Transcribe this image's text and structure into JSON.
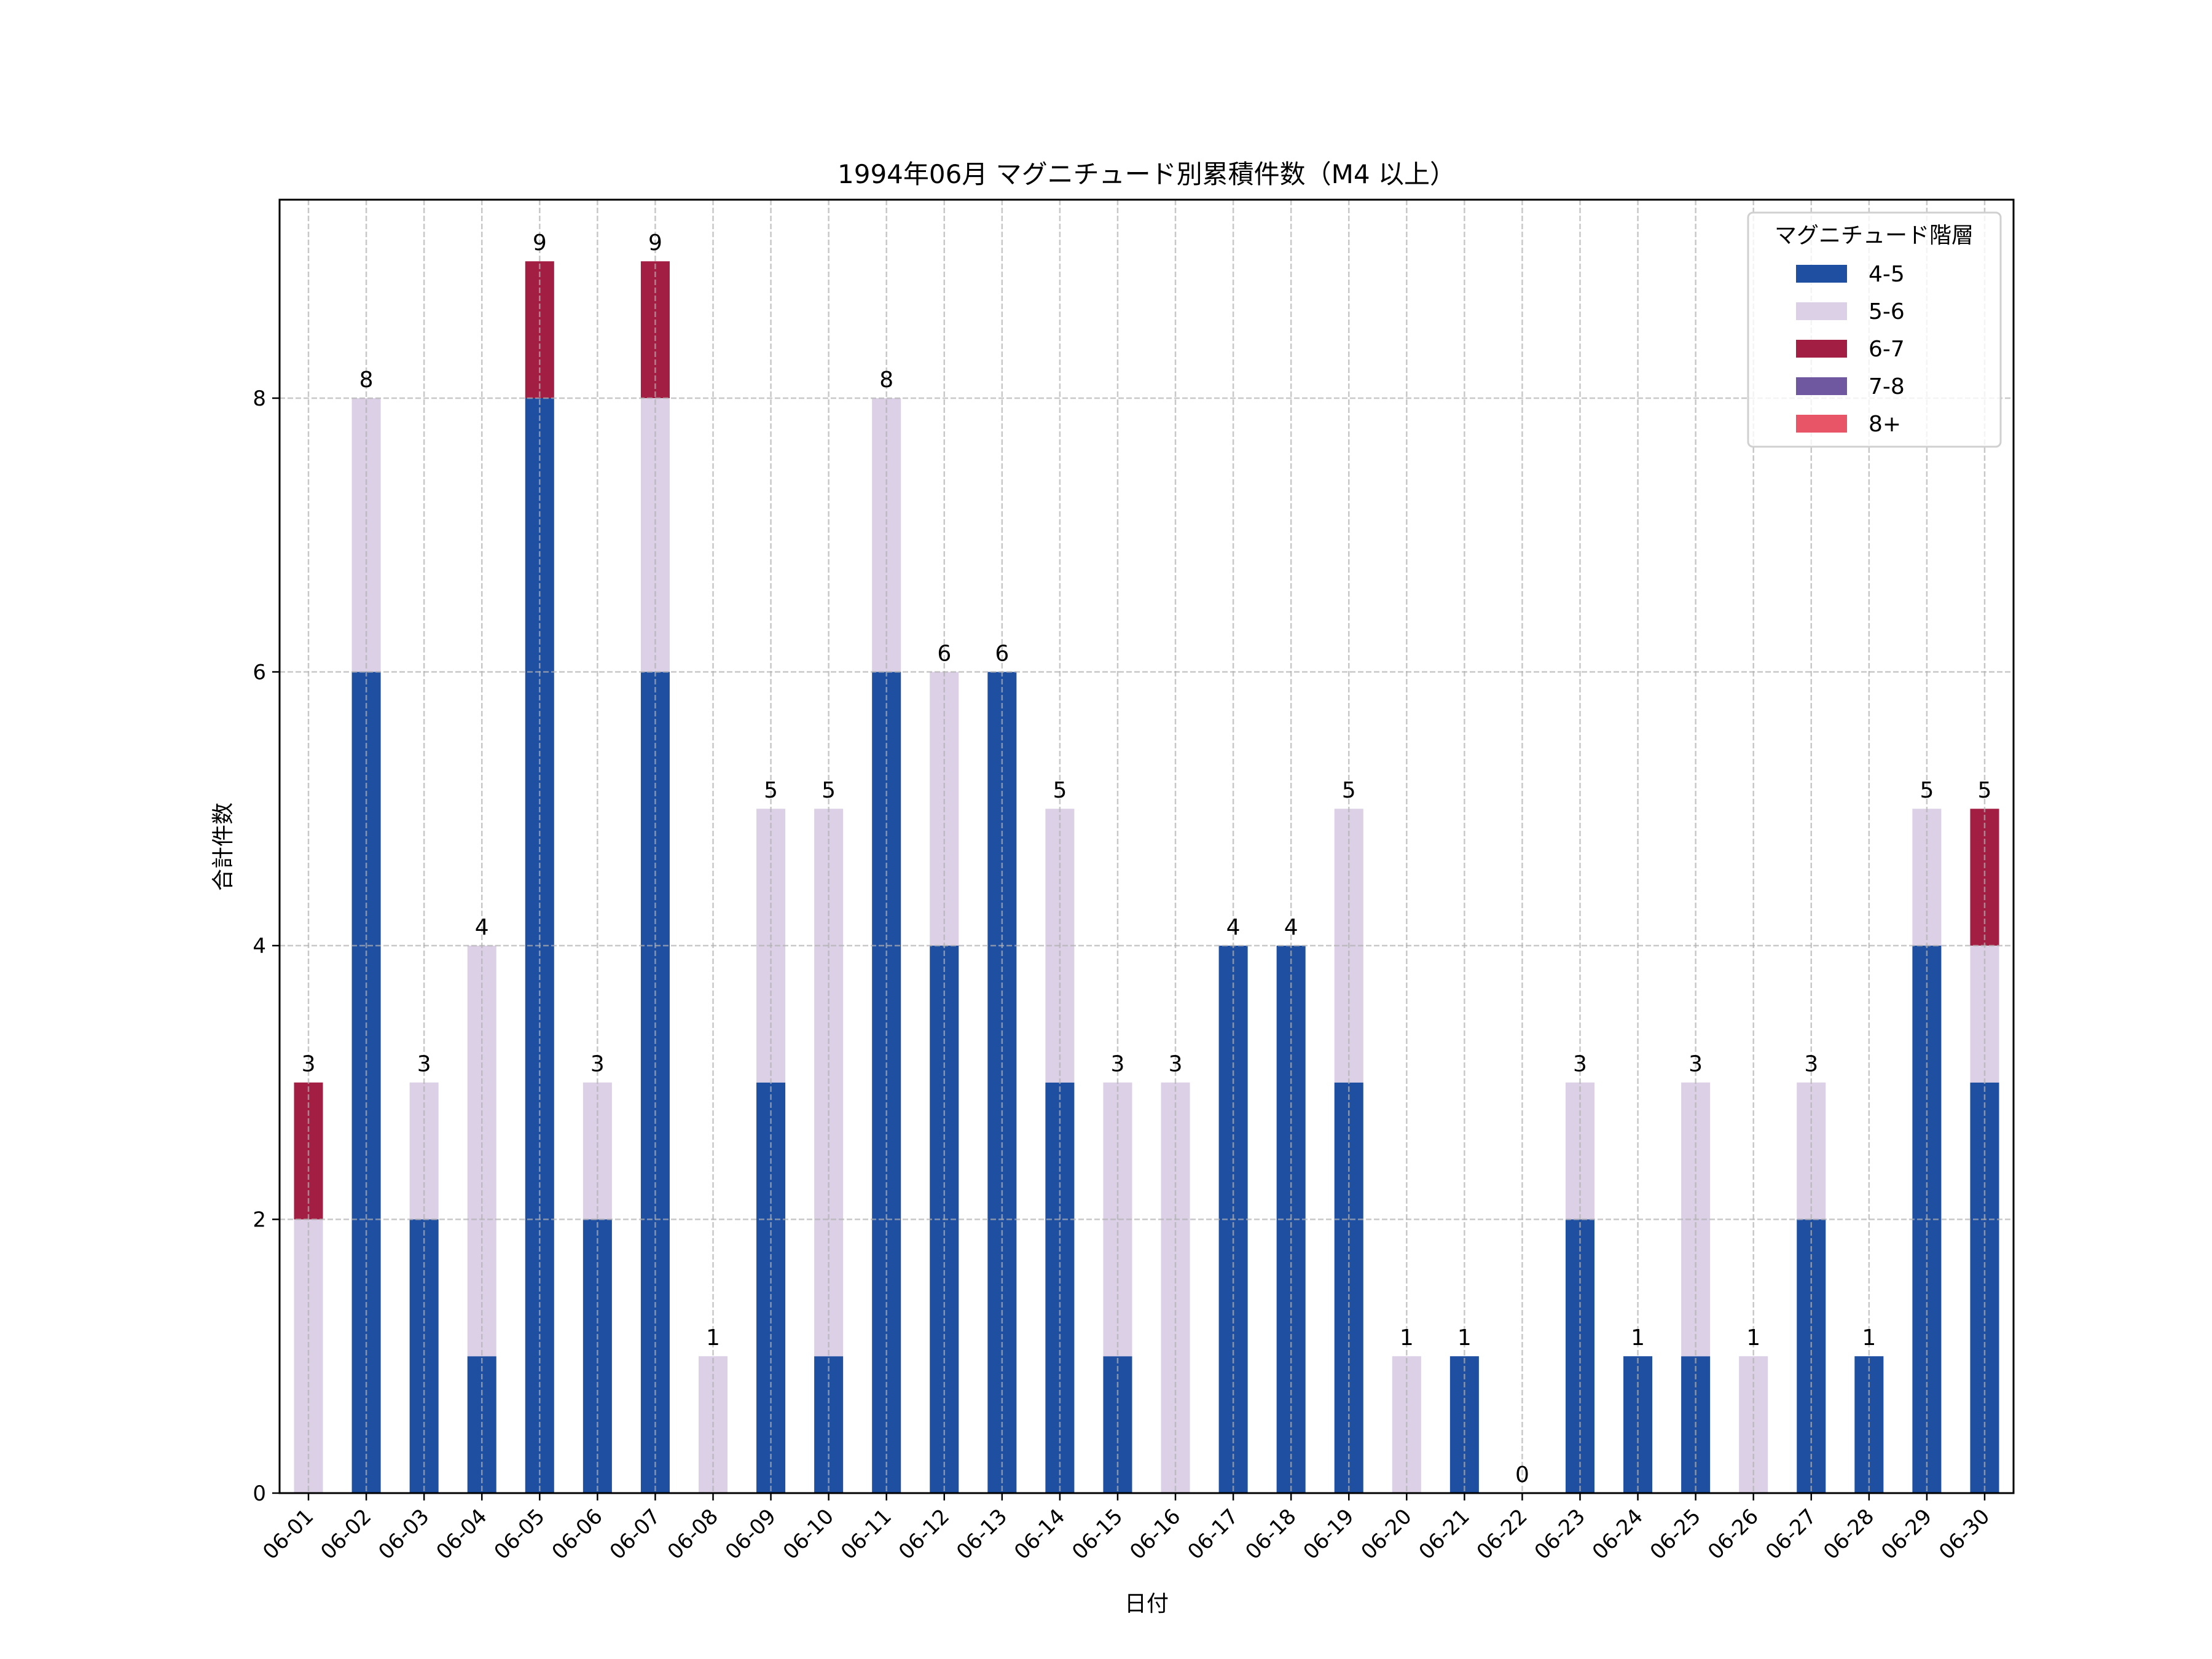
{
  "chart_data": {
    "type": "bar",
    "stacked": true,
    "title": "1994年06月 マグニチュード別累積件数（M4 以上）",
    "xlabel": "日付",
    "ylabel": "合計件数",
    "ylim": [
      0,
      9.45
    ],
    "yticks": [
      0,
      2,
      4,
      6,
      8
    ],
    "grid": true,
    "legend": {
      "title": "マグニチュード階層",
      "placement": "top-right"
    },
    "categories": [
      "06-01",
      "06-02",
      "06-03",
      "06-04",
      "06-05",
      "06-06",
      "06-07",
      "06-08",
      "06-09",
      "06-10",
      "06-11",
      "06-12",
      "06-13",
      "06-14",
      "06-15",
      "06-16",
      "06-17",
      "06-18",
      "06-19",
      "06-20",
      "06-21",
      "06-22",
      "06-23",
      "06-24",
      "06-25",
      "06-26",
      "06-27",
      "06-28",
      "06-29",
      "06-30"
    ],
    "series": [
      {
        "name": "4-5",
        "color": "#1f4fa0",
        "values": [
          0,
          6,
          2,
          1,
          8,
          2,
          6,
          0,
          3,
          1,
          6,
          4,
          6,
          3,
          1,
          0,
          4,
          4,
          3,
          0,
          1,
          0,
          2,
          1,
          1,
          0,
          2,
          1,
          4,
          3
        ]
      },
      {
        "name": "5-6",
        "color": "#dcd0e6",
        "values": [
          2,
          2,
          1,
          3,
          0,
          1,
          2,
          1,
          2,
          4,
          2,
          2,
          0,
          2,
          2,
          3,
          0,
          0,
          2,
          1,
          0,
          0,
          1,
          0,
          2,
          1,
          1,
          0,
          1,
          1
        ]
      },
      {
        "name": "6-7",
        "color": "#a21f43",
        "values": [
          1,
          0,
          0,
          0,
          1,
          0,
          1,
          0,
          0,
          0,
          0,
          0,
          0,
          0,
          0,
          0,
          0,
          0,
          0,
          0,
          0,
          0,
          0,
          0,
          0,
          0,
          0,
          0,
          0,
          1
        ]
      },
      {
        "name": "7-8",
        "color": "#7058a0",
        "values": [
          0,
          0,
          0,
          0,
          0,
          0,
          0,
          0,
          0,
          0,
          0,
          0,
          0,
          0,
          0,
          0,
          0,
          0,
          0,
          0,
          0,
          0,
          0,
          0,
          0,
          0,
          0,
          0,
          0,
          0
        ]
      },
      {
        "name": "8+",
        "color": "#e85566",
        "values": [
          0,
          0,
          0,
          0,
          0,
          0,
          0,
          0,
          0,
          0,
          0,
          0,
          0,
          0,
          0,
          0,
          0,
          0,
          0,
          0,
          0,
          0,
          0,
          0,
          0,
          0,
          0,
          0,
          0,
          0
        ]
      }
    ],
    "totals": [
      3,
      8,
      3,
      4,
      9,
      3,
      9,
      1,
      5,
      5,
      8,
      6,
      6,
      5,
      3,
      3,
      4,
      4,
      5,
      1,
      1,
      0,
      3,
      1,
      3,
      1,
      3,
      1,
      5,
      5
    ]
  }
}
